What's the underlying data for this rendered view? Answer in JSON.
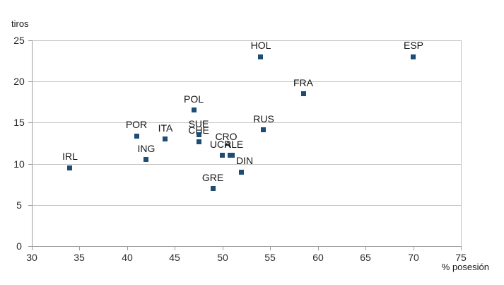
{
  "chart_data": {
    "type": "scatter",
    "title": "",
    "xlabel": "% posesión",
    "ylabel": "tiros",
    "xlim": [
      30,
      75
    ],
    "ylim": [
      0,
      25
    ],
    "xticks": [
      30,
      35,
      40,
      45,
      50,
      55,
      60,
      65,
      70,
      75
    ],
    "yticks": [
      0,
      5,
      10,
      15,
      20,
      25
    ],
    "grid": "horizontal-only",
    "legend": "none",
    "marker_shape": "square",
    "marker_color": "#1d4c75",
    "axis_color": "#9e9e9e",
    "gridline_color": "#c6c6c6",
    "points": [
      {
        "label": "IRL",
        "x": 34,
        "y": 9.5
      },
      {
        "label": "POR",
        "x": 41,
        "y": 13.4
      },
      {
        "label": "ING",
        "x": 42,
        "y": 10.5
      },
      {
        "label": "ITA",
        "x": 44,
        "y": 13
      },
      {
        "label": "POL",
        "x": 47,
        "y": 16.5
      },
      {
        "label": "SUE",
        "x": 47.5,
        "y": 13.5
      },
      {
        "label": "CHE",
        "x": 47.5,
        "y": 12.7
      },
      {
        "label": "GRE",
        "x": 49,
        "y": 7
      },
      {
        "label": "UCR",
        "x": 50,
        "y": 11,
        "label_dx": -3
      },
      {
        "label": "ALE",
        "x": 50.8,
        "y": 11,
        "label_dx": 5
      },
      {
        "label": "CRO",
        "x": 51,
        "y": 11,
        "label_dx": -8,
        "label_dy": -11
      },
      {
        "label": "DIN",
        "x": 52,
        "y": 9,
        "label_dx": 4
      },
      {
        "label": "RUS",
        "x": 54.3,
        "y": 14.1
      },
      {
        "label": "HOL",
        "x": 54,
        "y": 23
      },
      {
        "label": "FRA",
        "x": 58.5,
        "y": 18.5
      },
      {
        "label": "ESP",
        "x": 70,
        "y": 23
      }
    ]
  }
}
